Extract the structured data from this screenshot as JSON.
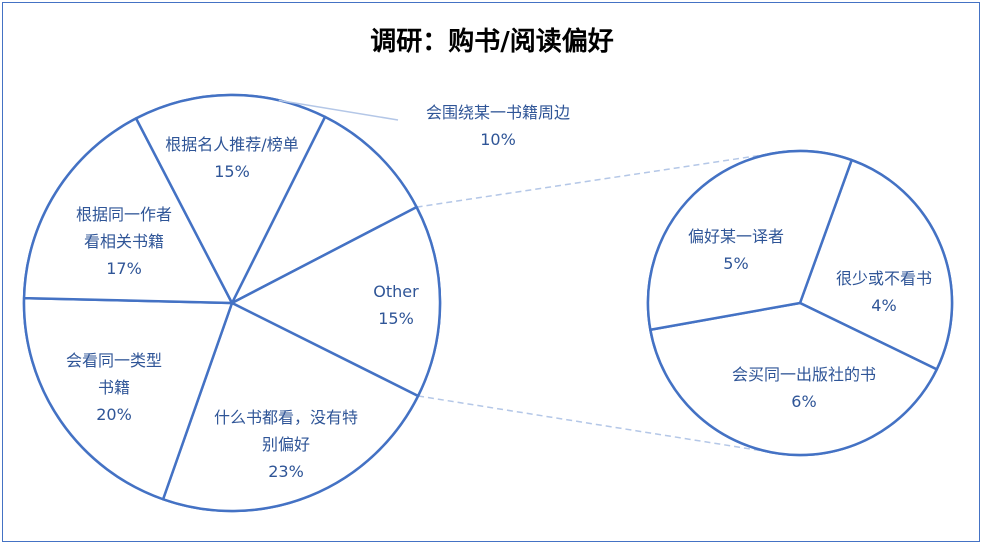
{
  "chart_data": {
    "type": "pie",
    "subtype": "pie-of-pie",
    "title": "调研：购书/阅读偏好",
    "colors": {
      "stroke": "#4472C4",
      "text": "#2F5597",
      "title": "#000000",
      "connector": "#B4C7E7"
    },
    "main_pie": {
      "slices": [
        {
          "label": [
            "会围绕某一书籍周边"
          ],
          "value": 10,
          "value_label": "10%"
        },
        {
          "label": [
            "Other"
          ],
          "value": 15,
          "value_label": "15%"
        },
        {
          "label": [
            "什么书都看，没有特",
            "别偏好"
          ],
          "value": 23,
          "value_label": "23%"
        },
        {
          "label": [
            "会看同一类型",
            "书籍"
          ],
          "value": 20,
          "value_label": "20%"
        },
        {
          "label": [
            "根据同一作者",
            "看相关书籍"
          ],
          "value": 17,
          "value_label": "17%"
        },
        {
          "label": [
            "根据名人推荐/榜单"
          ],
          "value": 15,
          "value_label": "15%"
        }
      ]
    },
    "secondary_pie": {
      "parent_slice": "Other",
      "slices": [
        {
          "label": [
            "很少或不看书"
          ],
          "value": 4,
          "value_label": "4%"
        },
        {
          "label": [
            "会买同一出版社的书"
          ],
          "value": 6,
          "value_label": "6%"
        },
        {
          "label": [
            "偏好某一译者"
          ],
          "value": 5,
          "value_label": "5%"
        }
      ]
    }
  }
}
